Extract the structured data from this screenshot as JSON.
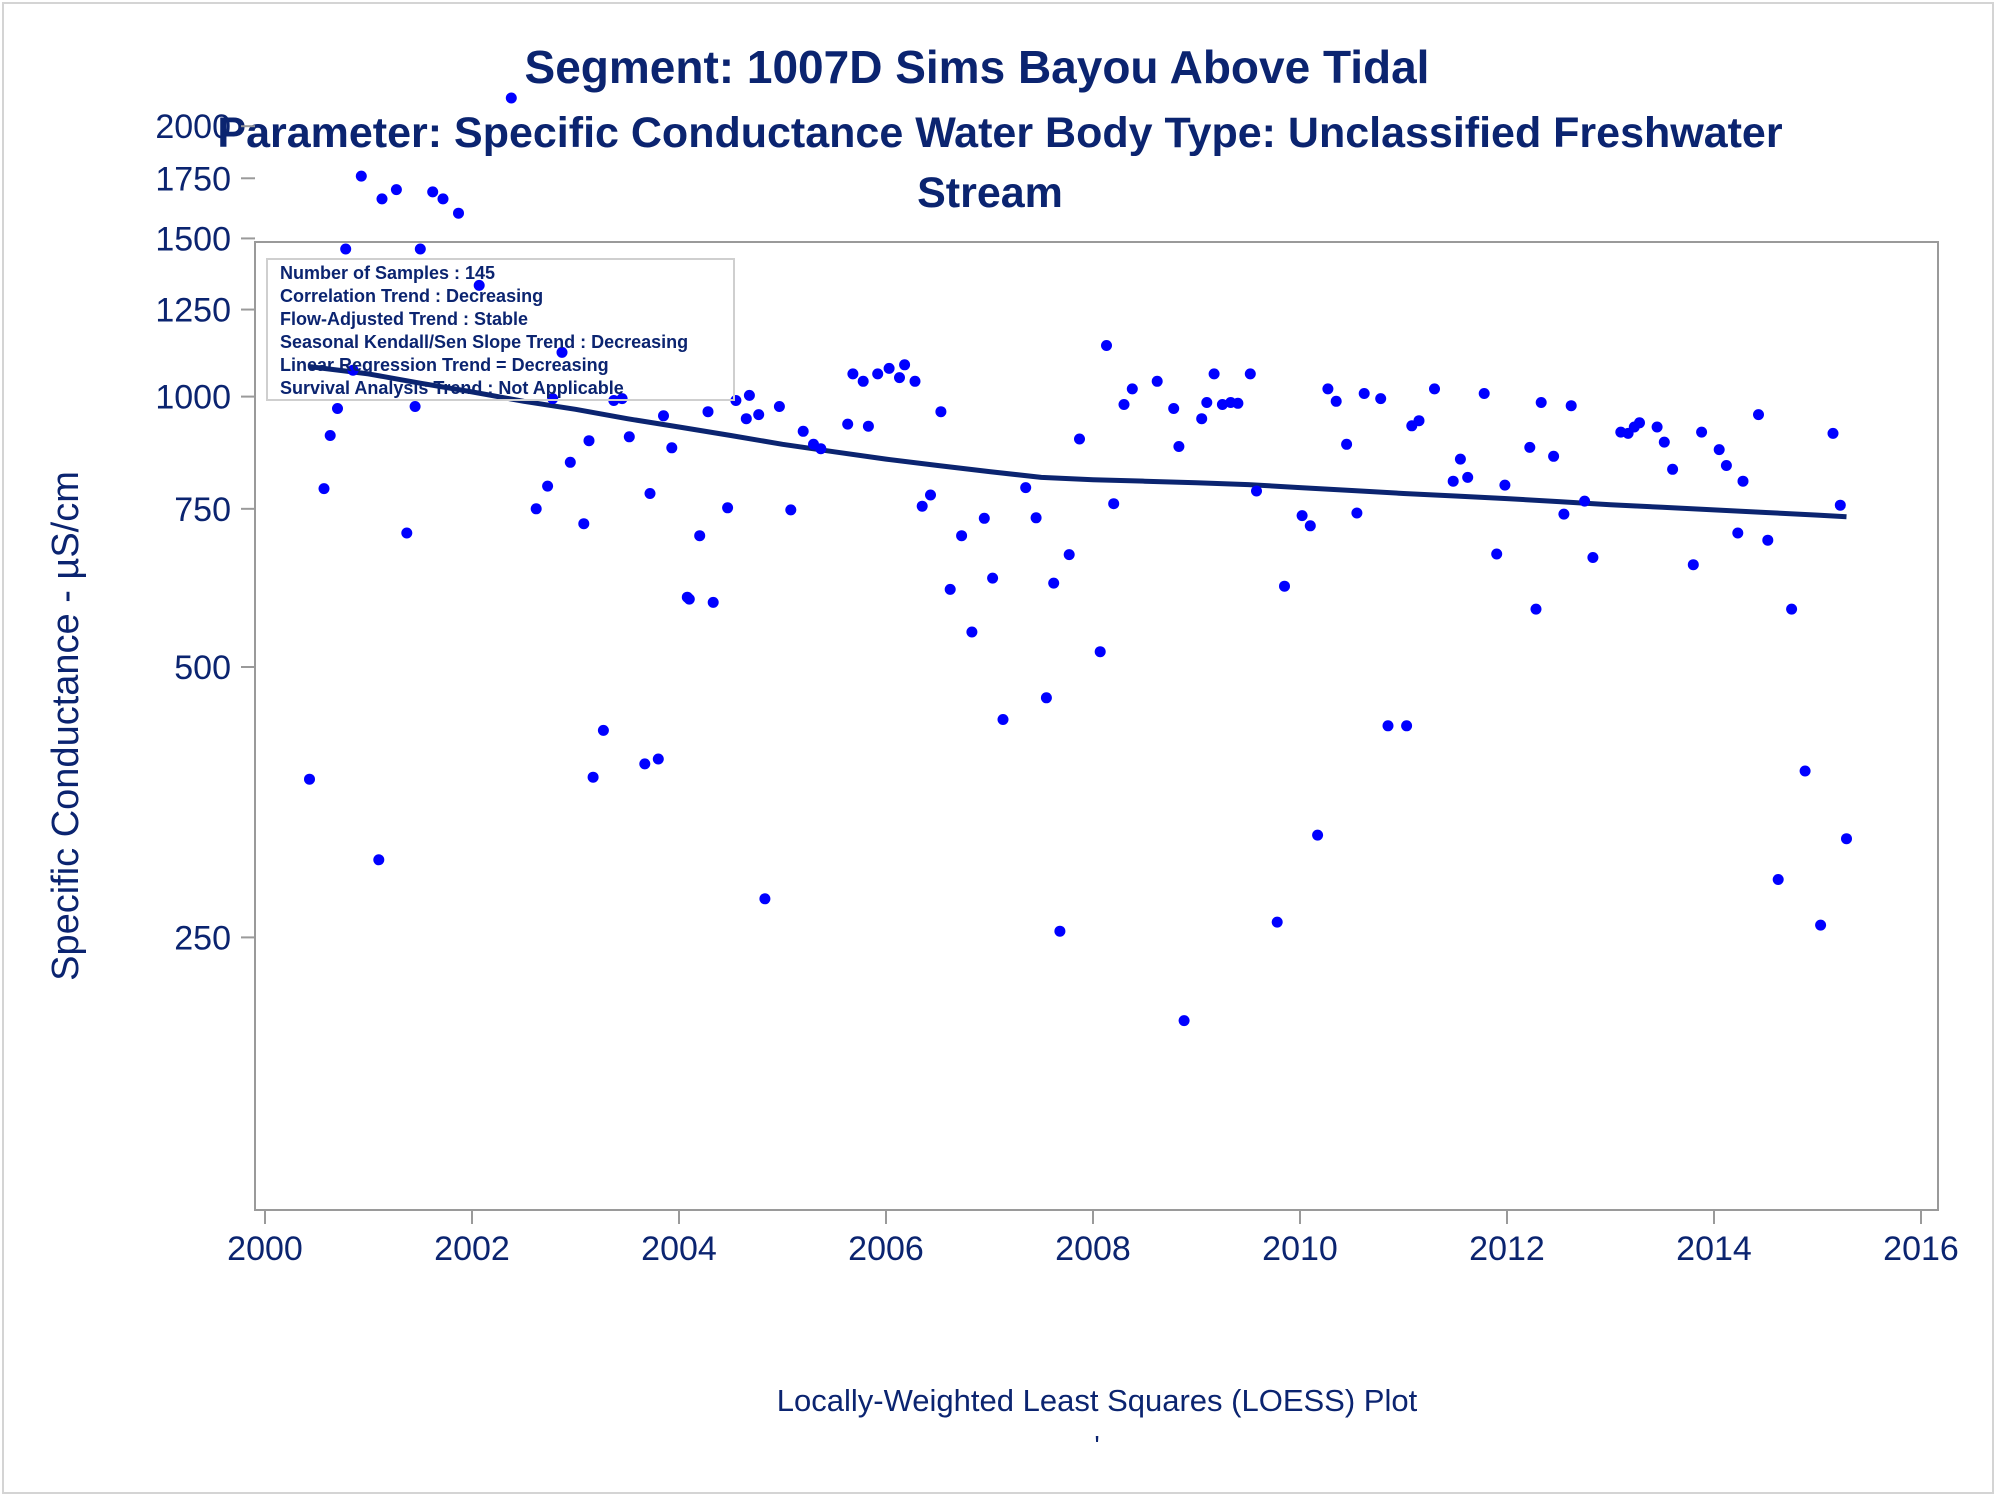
{
  "titles": {
    "line1": "Segment: 1007D  Sims Bayou Above Tidal",
    "line2": "Parameter: Specific Conductance   Water Body Type: Unclassified Freshwater",
    "line3": "Stream"
  },
  "footnote": "Locally-Weighted Least Squares (LOESS) Plot",
  "footnote_mark": "'",
  "stats": [
    "Number of Samples : 145",
    "Correlation Trend : Decreasing",
    "Flow-Adjusted Trend : Stable",
    "Seasonal Kendall/Sen Slope Trend : Decreasing",
    "Linear Regression Trend = Decreasing",
    "Survival Analysis Trend : Not Applicable"
  ],
  "colors": {
    "text": "#0b2470",
    "points": "#0000ff",
    "trend_line": "#0b2470",
    "axis": "#9a9a9a"
  },
  "chart_data": {
    "type": "scatter",
    "title": "Segment: 1007D  Sims Bayou Above Tidal",
    "ylabel": "Specific Conductance -  µS/cm",
    "xlabel": "",
    "y_scale": "log",
    "xlim": [
      2000,
      2016
    ],
    "ylim": [
      180,
      2350
    ],
    "x_ticks": [
      2000,
      2002,
      2004,
      2006,
      2008,
      2010,
      2012,
      2014,
      2016
    ],
    "y_ticks": [
      250,
      500,
      750,
      1000,
      1250,
      1500,
      1750,
      2000
    ],
    "series": [
      {
        "kind": "points",
        "points": [
          [
            2000.43,
            375
          ],
          [
            2000.57,
            790
          ],
          [
            2000.63,
            905
          ],
          [
            2000.7,
            970
          ],
          [
            2000.78,
            1460
          ],
          [
            2000.85,
            1070
          ],
          [
            2000.93,
            1760
          ],
          [
            2001.1,
            305
          ],
          [
            2001.13,
            1660
          ],
          [
            2001.27,
            1700
          ],
          [
            2001.37,
            705
          ],
          [
            2001.45,
            975
          ],
          [
            2001.5,
            1460
          ],
          [
            2001.62,
            1690
          ],
          [
            2001.72,
            1660
          ],
          [
            2001.87,
            1600
          ],
          [
            2002.07,
            1330
          ],
          [
            2002.38,
            2150
          ],
          [
            2002.62,
            750
          ],
          [
            2002.73,
            795
          ],
          [
            2002.78,
            995
          ],
          [
            2002.87,
            1120
          ],
          [
            2002.95,
            845
          ],
          [
            2003.08,
            722
          ],
          [
            2003.13,
            893
          ],
          [
            2003.17,
            377
          ],
          [
            2003.27,
            425
          ],
          [
            2003.37,
            990
          ],
          [
            2003.45,
            995
          ],
          [
            2003.52,
            902
          ],
          [
            2003.67,
            390
          ],
          [
            2003.72,
            780
          ],
          [
            2003.8,
            395
          ],
          [
            2003.85,
            952
          ],
          [
            2003.93,
            877
          ],
          [
            2004.08,
            598
          ],
          [
            2004.1,
            595
          ],
          [
            2004.2,
            700
          ],
          [
            2004.28,
            962
          ],
          [
            2004.33,
            590
          ],
          [
            2004.47,
            752
          ],
          [
            2004.55,
            990
          ],
          [
            2004.65,
            945
          ],
          [
            2004.68,
            1003
          ],
          [
            2004.77,
            955
          ],
          [
            2004.83,
            276
          ],
          [
            2004.97,
            975
          ],
          [
            2005.08,
            748
          ],
          [
            2005.2,
            915
          ],
          [
            2005.3,
            885
          ],
          [
            2005.37,
            875
          ],
          [
            2005.63,
            932
          ],
          [
            2005.68,
            1060
          ],
          [
            2005.78,
            1040
          ],
          [
            2005.83,
            927
          ],
          [
            2005.92,
            1060
          ],
          [
            2006.03,
            1075
          ],
          [
            2006.13,
            1050
          ],
          [
            2006.18,
            1085
          ],
          [
            2006.28,
            1040
          ],
          [
            2006.35,
            755
          ],
          [
            2006.43,
            777
          ],
          [
            2006.53,
            962
          ],
          [
            2006.62,
            610
          ],
          [
            2006.73,
            700
          ],
          [
            2006.83,
            547
          ],
          [
            2006.95,
            732
          ],
          [
            2007.03,
            628
          ],
          [
            2007.13,
            437
          ],
          [
            2007.35,
            792
          ],
          [
            2007.45,
            733
          ],
          [
            2007.55,
            462
          ],
          [
            2007.62,
            620
          ],
          [
            2007.68,
            254
          ],
          [
            2007.77,
            667
          ],
          [
            2007.87,
            897
          ],
          [
            2008.07,
            520
          ],
          [
            2008.13,
            1140
          ],
          [
            2008.2,
            760
          ],
          [
            2008.3,
            980
          ],
          [
            2008.38,
            1020
          ],
          [
            2008.62,
            1040
          ],
          [
            2008.78,
            970
          ],
          [
            2008.83,
            880
          ],
          [
            2008.88,
            202
          ],
          [
            2009.05,
            945
          ],
          [
            2009.1,
            985
          ],
          [
            2009.17,
            1060
          ],
          [
            2009.25,
            980
          ],
          [
            2009.33,
            985
          ],
          [
            2009.4,
            983
          ],
          [
            2009.52,
            1060
          ],
          [
            2009.58,
            785
          ],
          [
            2009.78,
            260
          ],
          [
            2009.85,
            615
          ],
          [
            2010.02,
            737
          ],
          [
            2010.1,
            718
          ],
          [
            2010.17,
            325
          ],
          [
            2010.27,
            1020
          ],
          [
            2010.35,
            988
          ],
          [
            2010.45,
            885
          ],
          [
            2010.55,
            742
          ],
          [
            2010.62,
            1008
          ],
          [
            2010.78,
            995
          ],
          [
            2010.85,
            430
          ],
          [
            2011.03,
            430
          ],
          [
            2011.08,
            928
          ],
          [
            2011.15,
            940
          ],
          [
            2011.3,
            1020
          ],
          [
            2011.48,
            805
          ],
          [
            2011.55,
            852
          ],
          [
            2011.62,
            813
          ],
          [
            2011.78,
            1008
          ],
          [
            2011.9,
            668
          ],
          [
            2011.98,
            797
          ],
          [
            2012.22,
            878
          ],
          [
            2012.28,
            580
          ],
          [
            2012.33,
            985
          ],
          [
            2012.45,
            858
          ],
          [
            2012.55,
            740
          ],
          [
            2012.62,
            977
          ],
          [
            2012.75,
            765
          ],
          [
            2012.83,
            662
          ],
          [
            2013.1,
            913
          ],
          [
            2013.17,
            910
          ],
          [
            2013.23,
            925
          ],
          [
            2013.28,
            935
          ],
          [
            2013.45,
            925
          ],
          [
            2013.52,
            890
          ],
          [
            2013.6,
            830
          ],
          [
            2013.8,
            650
          ],
          [
            2013.88,
            913
          ],
          [
            2014.05,
            873
          ],
          [
            2014.12,
            838
          ],
          [
            2014.28,
            805
          ],
          [
            2014.23,
            705
          ],
          [
            2014.43,
            955
          ],
          [
            2014.52,
            692
          ],
          [
            2014.62,
            290
          ],
          [
            2014.75,
            580
          ],
          [
            2014.88,
            383
          ],
          [
            2015.03,
            258
          ],
          [
            2015.15,
            910
          ],
          [
            2015.22,
            757
          ],
          [
            2015.28,
            322
          ]
        ]
      },
      {
        "kind": "loess",
        "points": [
          [
            2000.43,
            1080
          ],
          [
            2001.0,
            1060
          ],
          [
            2001.5,
            1035
          ],
          [
            2002.0,
            1012
          ],
          [
            2002.5,
            988
          ],
          [
            2003.0,
            968
          ],
          [
            2003.5,
            945
          ],
          [
            2004.0,
            925
          ],
          [
            2004.5,
            905
          ],
          [
            2005.0,
            885
          ],
          [
            2005.5,
            868
          ],
          [
            2006.0,
            852
          ],
          [
            2006.5,
            838
          ],
          [
            2007.0,
            825
          ],
          [
            2007.5,
            813
          ],
          [
            2008.0,
            808
          ],
          [
            2008.5,
            805
          ],
          [
            2009.0,
            802
          ],
          [
            2009.5,
            798
          ],
          [
            2010.0,
            792
          ],
          [
            2010.5,
            786
          ],
          [
            2011.0,
            780
          ],
          [
            2011.5,
            775
          ],
          [
            2012.0,
            770
          ],
          [
            2012.5,
            764
          ],
          [
            2013.0,
            758
          ],
          [
            2013.5,
            753
          ],
          [
            2014.0,
            748
          ],
          [
            2014.5,
            743
          ],
          [
            2015.0,
            738
          ],
          [
            2015.28,
            735
          ]
        ]
      }
    ]
  }
}
